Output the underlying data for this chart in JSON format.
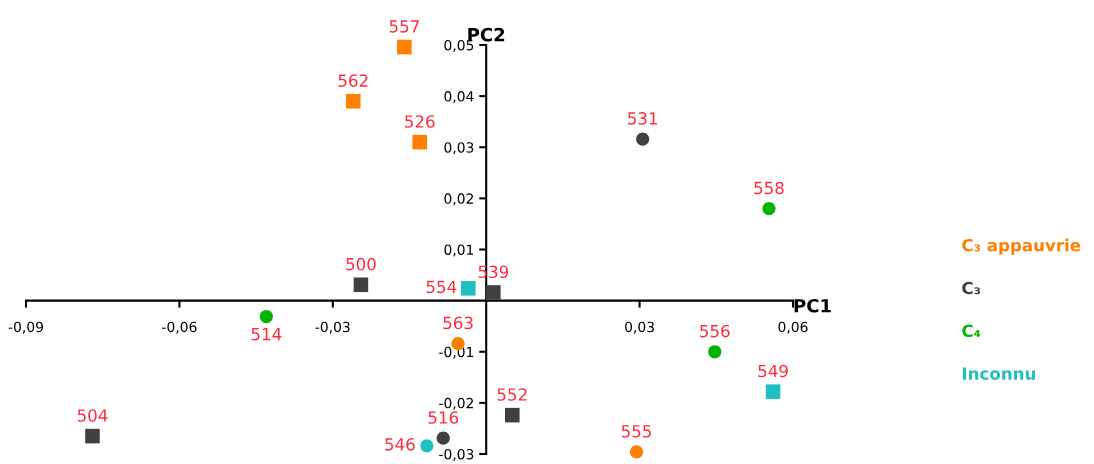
{
  "chart_data": {
    "type": "scatter",
    "xlabel": "PC1",
    "ylabel": "PC2",
    "xlim": [
      -0.09,
      0.06
    ],
    "ylim": [
      -0.03,
      0.05
    ],
    "xticks": [
      {
        "value": -0.09,
        "label": "-0,09"
      },
      {
        "value": -0.06,
        "label": "-0,06"
      },
      {
        "value": -0.03,
        "label": "-0,03"
      },
      {
        "value": 0.03,
        "label": "0,03"
      },
      {
        "value": 0.06,
        "label": "0,06"
      }
    ],
    "yticks": [
      {
        "value": -0.03,
        "label": "-0,03"
      },
      {
        "value": -0.02,
        "label": "-0,02"
      },
      {
        "value": -0.01,
        "label": "-0,01"
      },
      {
        "value": 0.01,
        "label": "0,01"
      },
      {
        "value": 0.02,
        "label": "0,02"
      },
      {
        "value": 0.03,
        "label": "0,03"
      },
      {
        "value": 0.04,
        "label": "0,04"
      },
      {
        "value": 0.05,
        "label": "0,05"
      }
    ],
    "grid": false,
    "legend": "right",
    "series": [
      {
        "name": "C₃ appauvrie",
        "color": "#ff7f00",
        "marker": "square",
        "x": [
          -0.016,
          -0.026,
          -0.013
        ],
        "values": [
          0.0496,
          0.039,
          0.031
        ]
      },
      {
        "color": "#ff7f00",
        "marker": "circle",
        "x": [
          -0.0055,
          0.0294
        ],
        "values": [
          -0.0084,
          -0.0296
        ]
      },
      {
        "name": "C₃",
        "color": "#404040",
        "marker": "square",
        "x": [
          -0.0245,
          0.0014,
          -0.077,
          0.0051
        ],
        "values": [
          0.0031,
          0.0016,
          -0.0265,
          -0.0224
        ]
      },
      {
        "color": "#404040",
        "marker": "circle",
        "x": [
          -0.0084,
          0.0306
        ],
        "values": [
          -0.0269,
          0.0316
        ]
      },
      {
        "name": "C₄",
        "color": "#00b400",
        "marker": "circle",
        "x": [
          -0.043,
          0.0553,
          0.0447
        ],
        "values": [
          -0.0031,
          0.018,
          -0.01
        ]
      },
      {
        "name": "Inconnu",
        "color": "#20c0c0",
        "marker": "square",
        "x": [
          -0.0035,
          0.0561
        ],
        "values": [
          0.0024,
          -0.0178
        ]
      },
      {
        "color": "#20c0c0",
        "marker": "circle",
        "x": [
          -0.0116
        ],
        "values": [
          -0.0284
        ]
      }
    ],
    "annotations": [
      {
        "text": "557",
        "x": -0.016,
        "y": 0.0496
      },
      {
        "text": "562",
        "x": -0.026,
        "y": 0.039
      },
      {
        "text": "526",
        "x": -0.013,
        "y": 0.031
      },
      {
        "text": "563",
        "x": -0.0055,
        "y": -0.0084
      },
      {
        "text": "555",
        "x": 0.0294,
        "y": -0.0296
      },
      {
        "text": "500",
        "x": -0.0245,
        "y": 0.0031
      },
      {
        "text": "539",
        "x": 0.0014,
        "y": 0.0016
      },
      {
        "text": "504",
        "x": -0.077,
        "y": -0.0265
      },
      {
        "text": "552",
        "x": 0.0051,
        "y": -0.0224
      },
      {
        "text": "516",
        "x": -0.0084,
        "y": -0.0269
      },
      {
        "text": "531",
        "x": 0.0306,
        "y": 0.0316
      },
      {
        "text": "514",
        "x": -0.043,
        "y": -0.0031
      },
      {
        "text": "558",
        "x": 0.0553,
        "y": 0.018
      },
      {
        "text": "556",
        "x": 0.0447,
        "y": -0.01
      },
      {
        "text": "554",
        "x": -0.0035,
        "y": 0.0024
      },
      {
        "text": "549",
        "x": 0.0561,
        "y": -0.0178
      },
      {
        "text": "546",
        "x": -0.0116,
        "y": -0.0284
      }
    ]
  }
}
